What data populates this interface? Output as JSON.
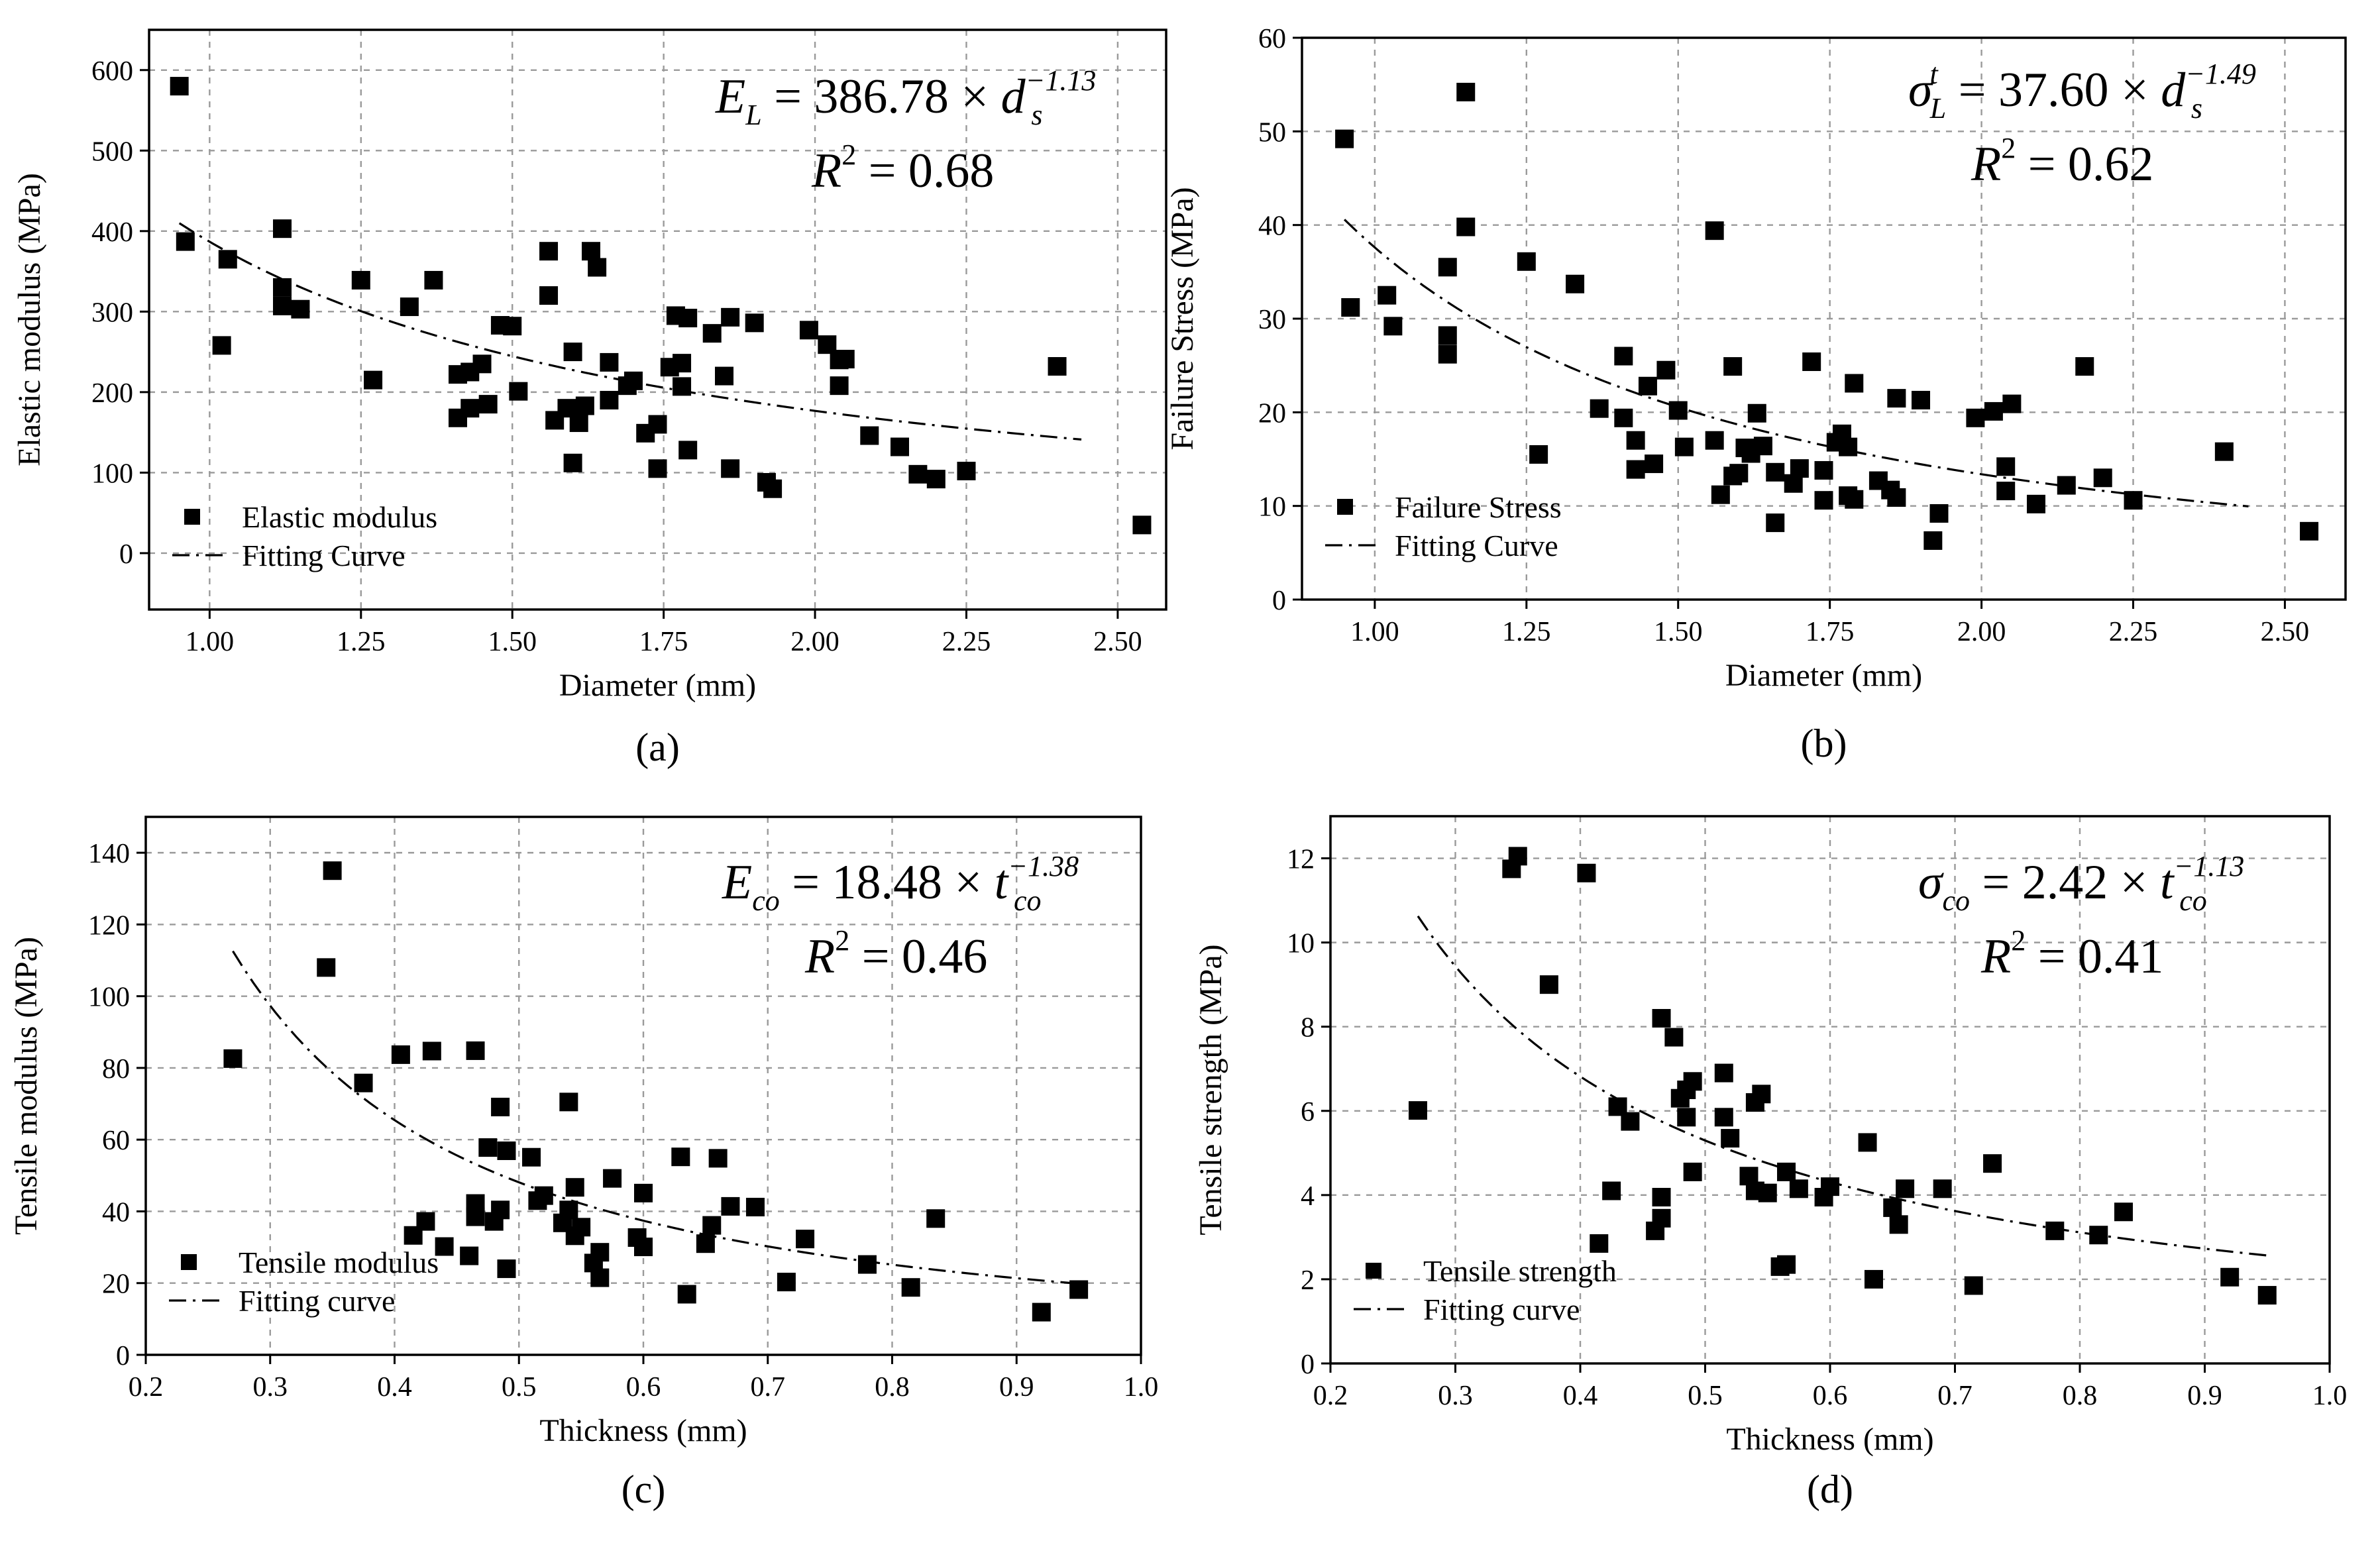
{
  "chart_data": [
    {
      "type": "scatter",
      "panel_label": "(a)",
      "xlabel": "Diameter (mm)",
      "ylabel": "Elastic modulus (MPa)",
      "xlim": [
        0.9,
        2.58
      ],
      "ylim": [
        -70,
        650
      ],
      "xticks": [
        1.0,
        1.25,
        1.5,
        1.75,
        2.0,
        2.25,
        2.5
      ],
      "xtick_labels": [
        "1.00",
        "1.25",
        "1.50",
        "1.75",
        "2.00",
        "2.25",
        "2.50"
      ],
      "yticks": [
        0,
        100,
        200,
        300,
        400,
        500,
        600
      ],
      "ytick_labels": [
        "0",
        "100",
        "200",
        "300",
        "400",
        "500",
        "600"
      ],
      "equation": {
        "lhs": "E",
        "lhs_sub": "L",
        "coef": "386.78",
        "var": "d",
        "var_sub": "s",
        "exp": "−1.13",
        "r2_label": "R",
        "r2_value": "0.68"
      },
      "legend": {
        "points": "Elastic modulus",
        "fit": "Fitting Curve",
        "position": "bottom-left"
      },
      "fit": {
        "a": 386.78,
        "b": -1.13,
        "x_range": [
          0.95,
          2.44
        ]
      },
      "points": [
        [
          0.95,
          580
        ],
        [
          0.96,
          387
        ],
        [
          1.03,
          365
        ],
        [
          1.02,
          258
        ],
        [
          1.12,
          403
        ],
        [
          1.12,
          330
        ],
        [
          1.12,
          307
        ],
        [
          1.15,
          303
        ],
        [
          1.25,
          339
        ],
        [
          1.27,
          215
        ],
        [
          1.33,
          306
        ],
        [
          1.37,
          339
        ],
        [
          1.41,
          222
        ],
        [
          1.41,
          168
        ],
        [
          1.43,
          180
        ],
        [
          1.43,
          225
        ],
        [
          1.45,
          235
        ],
        [
          1.46,
          185
        ],
        [
          1.48,
          283
        ],
        [
          1.5,
          282
        ],
        [
          1.51,
          201
        ],
        [
          1.56,
          375
        ],
        [
          1.56,
          320
        ],
        [
          1.57,
          165
        ],
        [
          1.59,
          180
        ],
        [
          1.6,
          250
        ],
        [
          1.6,
          112
        ],
        [
          1.61,
          162
        ],
        [
          1.62,
          183
        ],
        [
          1.63,
          375
        ],
        [
          1.64,
          355
        ],
        [
          1.66,
          190
        ],
        [
          1.66,
          237
        ],
        [
          1.69,
          208
        ],
        [
          1.7,
          214
        ],
        [
          1.72,
          149
        ],
        [
          1.74,
          160
        ],
        [
          1.74,
          105
        ],
        [
          1.76,
          231
        ],
        [
          1.77,
          295
        ],
        [
          1.78,
          207
        ],
        [
          1.78,
          236
        ],
        [
          1.79,
          292
        ],
        [
          1.79,
          128
        ],
        [
          1.83,
          273
        ],
        [
          1.85,
          220
        ],
        [
          1.86,
          293
        ],
        [
          1.86,
          105
        ],
        [
          1.9,
          286
        ],
        [
          1.92,
          88
        ],
        [
          1.93,
          80
        ],
        [
          1.99,
          277
        ],
        [
          2.02,
          259
        ],
        [
          2.04,
          240
        ],
        [
          2.04,
          208
        ],
        [
          2.05,
          241
        ],
        [
          2.09,
          146
        ],
        [
          2.14,
          132
        ],
        [
          2.17,
          98
        ],
        [
          2.2,
          92
        ],
        [
          2.25,
          102
        ],
        [
          2.4,
          232
        ],
        [
          2.54,
          35
        ]
      ]
    },
    {
      "type": "scatter",
      "panel_label": "(b)",
      "xlabel": "Diameter (mm)",
      "ylabel": "Failure Stress (MPa)",
      "xlim": [
        0.88,
        2.6
      ],
      "ylim": [
        0,
        60
      ],
      "xticks": [
        1.0,
        1.25,
        1.5,
        1.75,
        2.0,
        2.25,
        2.5
      ],
      "xtick_labels": [
        "1.00",
        "1.25",
        "1.50",
        "1.75",
        "2.00",
        "2.25",
        "2.50"
      ],
      "yticks": [
        0,
        10,
        20,
        30,
        40,
        50,
        60
      ],
      "ytick_labels": [
        "0",
        "10",
        "20",
        "30",
        "40",
        "50",
        "60"
      ],
      "equation": {
        "lhs": "σ",
        "lhs_sub": "L",
        "lhs_sup": "t",
        "coef": "37.60",
        "var": "d",
        "var_sub": "s",
        "exp": "−1.49",
        "r2_label": "R",
        "r2_value": "0.62"
      },
      "legend": {
        "points": "Failure Stress",
        "fit": "Fitting Curve",
        "position": "bottom-left"
      },
      "fit": {
        "a": 37.6,
        "b": -1.49,
        "x_range": [
          0.95,
          2.44
        ]
      },
      "points": [
        [
          0.95,
          49.2
        ],
        [
          0.96,
          31.2
        ],
        [
          1.02,
          32.5
        ],
        [
          1.03,
          29.2
        ],
        [
          1.12,
          35.5
        ],
        [
          1.12,
          28.2
        ],
        [
          1.12,
          26.2
        ],
        [
          1.15,
          54.2
        ],
        [
          1.15,
          39.8
        ],
        [
          1.25,
          36.1
        ],
        [
          1.27,
          15.5
        ],
        [
          1.33,
          33.7
        ],
        [
          1.37,
          20.4
        ],
        [
          1.41,
          26
        ],
        [
          1.41,
          19.4
        ],
        [
          1.43,
          13.9
        ],
        [
          1.43,
          17
        ],
        [
          1.45,
          22.8
        ],
        [
          1.46,
          14.5
        ],
        [
          1.48,
          24.5
        ],
        [
          1.5,
          20.2
        ],
        [
          1.51,
          16.3
        ],
        [
          1.56,
          39.4
        ],
        [
          1.56,
          17
        ],
        [
          1.57,
          11.2
        ],
        [
          1.59,
          24.9
        ],
        [
          1.59,
          13.2
        ],
        [
          1.6,
          13.5
        ],
        [
          1.61,
          16.2
        ],
        [
          1.62,
          15.6
        ],
        [
          1.63,
          19.9
        ],
        [
          1.64,
          16.4
        ],
        [
          1.66,
          8.2
        ],
        [
          1.66,
          13.6
        ],
        [
          1.69,
          12.4
        ],
        [
          1.7,
          14
        ],
        [
          1.72,
          25.4
        ],
        [
          1.74,
          13.8
        ],
        [
          1.74,
          10.6
        ],
        [
          1.76,
          16.8
        ],
        [
          1.77,
          17.7
        ],
        [
          1.78,
          16.3
        ],
        [
          1.78,
          11.1
        ],
        [
          1.79,
          23.1
        ],
        [
          1.79,
          10.7
        ],
        [
          1.83,
          12.7
        ],
        [
          1.85,
          11.7
        ],
        [
          1.86,
          21.5
        ],
        [
          1.86,
          10.9
        ],
        [
          1.9,
          21.3
        ],
        [
          1.92,
          6.3
        ],
        [
          1.93,
          9.2
        ],
        [
          1.99,
          19.4
        ],
        [
          2.02,
          20.1
        ],
        [
          2.04,
          14.2
        ],
        [
          2.04,
          11.6
        ],
        [
          2.05,
          20.9
        ],
        [
          2.09,
          10.2
        ],
        [
          2.14,
          12.2
        ],
        [
          2.17,
          24.9
        ],
        [
          2.2,
          13
        ],
        [
          2.25,
          10.6
        ],
        [
          2.4,
          15.8
        ],
        [
          2.54,
          7.3
        ]
      ]
    },
    {
      "type": "scatter",
      "panel_label": "(c)",
      "xlabel": "Thickness (mm)",
      "ylabel": "Tensile modulus (MPa)",
      "xlim": [
        0.2,
        1.0
      ],
      "ylim": [
        0,
        150
      ],
      "xticks": [
        0.2,
        0.3,
        0.4,
        0.5,
        0.6,
        0.7,
        0.8,
        0.9,
        1.0
      ],
      "xtick_labels": [
        "0.2",
        "0.3",
        "0.4",
        "0.5",
        "0.6",
        "0.7",
        "0.8",
        "0.9",
        "1.0"
      ],
      "yticks": [
        0,
        20,
        40,
        60,
        80,
        100,
        120,
        140
      ],
      "ytick_labels": [
        "0",
        "20",
        "40",
        "60",
        "80",
        "100",
        "120",
        "140"
      ],
      "equation": {
        "lhs": "E",
        "lhs_sub": "co",
        "coef": "18.48",
        "var": "t",
        "var_sub": "co",
        "exp": "−1.38",
        "r2_label": "R",
        "r2_value": "0.46"
      },
      "legend": {
        "points": "Tensile modulus",
        "fit": "Fitting curve",
        "position": "bottom-left"
      },
      "fit": {
        "a": 18.48,
        "b": -1.38,
        "x_range": [
          0.27,
          0.95
        ]
      },
      "points": [
        [
          0.27,
          82.6
        ],
        [
          0.345,
          108
        ],
        [
          0.35,
          135
        ],
        [
          0.375,
          75.8
        ],
        [
          0.405,
          83.7
        ],
        [
          0.415,
          33.3
        ],
        [
          0.425,
          37.2
        ],
        [
          0.43,
          84.7
        ],
        [
          0.44,
          30.2
        ],
        [
          0.46,
          27.6
        ],
        [
          0.465,
          84.8
        ],
        [
          0.465,
          38.5
        ],
        [
          0.465,
          42.2
        ],
        [
          0.475,
          57.8
        ],
        [
          0.48,
          37.2
        ],
        [
          0.485,
          69.1
        ],
        [
          0.485,
          40.4
        ],
        [
          0.49,
          56.9
        ],
        [
          0.49,
          24
        ],
        [
          0.51,
          55.1
        ],
        [
          0.515,
          43
        ],
        [
          0.52,
          44.4
        ],
        [
          0.535,
          36.8
        ],
        [
          0.54,
          70.5
        ],
        [
          0.54,
          40.4
        ],
        [
          0.545,
          46.7
        ],
        [
          0.545,
          33.2
        ],
        [
          0.55,
          35.6
        ],
        [
          0.56,
          25.6
        ],
        [
          0.565,
          21.5
        ],
        [
          0.565,
          28.6
        ],
        [
          0.575,
          49.2
        ],
        [
          0.595,
          32.7
        ],
        [
          0.6,
          45.1
        ],
        [
          0.6,
          30.1
        ],
        [
          0.63,
          55.2
        ],
        [
          0.635,
          16.9
        ],
        [
          0.65,
          31
        ],
        [
          0.655,
          36.1
        ],
        [
          0.66,
          54.8
        ],
        [
          0.67,
          41.4
        ],
        [
          0.69,
          41.2
        ],
        [
          0.715,
          20.3
        ],
        [
          0.73,
          32.3
        ],
        [
          0.78,
          25.2
        ],
        [
          0.815,
          18.8
        ],
        [
          0.835,
          38
        ],
        [
          0.92,
          11.9
        ],
        [
          0.95,
          18.2
        ]
      ]
    },
    {
      "type": "scatter",
      "panel_label": "(d)",
      "xlabel": "Thickness (mm)",
      "ylabel": "Tensile strength (MPa)",
      "xlim": [
        0.2,
        1.0
      ],
      "ylim": [
        0,
        13
      ],
      "xticks": [
        0.2,
        0.3,
        0.4,
        0.5,
        0.6,
        0.7,
        0.8,
        0.9,
        1.0
      ],
      "xtick_labels": [
        "0.2",
        "0.3",
        "0.4",
        "0.5",
        "0.6",
        "0.7",
        "0.8",
        "0.9",
        "1.0"
      ],
      "yticks": [
        0,
        2,
        4,
        6,
        8,
        10,
        12
      ],
      "ytick_labels": [
        "0",
        "2",
        "4",
        "6",
        "8",
        "10",
        "12"
      ],
      "equation": {
        "lhs": "σ",
        "lhs_sub": "co",
        "coef": "2.42",
        "var": "t",
        "var_sub": "co",
        "exp": "−1.13",
        "r2_label": "R",
        "r2_value": "0.41"
      },
      "legend": {
        "points": "Tensile strength",
        "fit": "Fitting curve",
        "position": "bottom-left"
      },
      "fit": {
        "a": 2.42,
        "b": -1.13,
        "x_range": [
          0.27,
          0.95
        ]
      },
      "points": [
        [
          0.27,
          6.01
        ],
        [
          0.345,
          11.75
        ],
        [
          0.35,
          12.05
        ],
        [
          0.375,
          9
        ],
        [
          0.405,
          11.65
        ],
        [
          0.415,
          2.85
        ],
        [
          0.425,
          4.1
        ],
        [
          0.43,
          6.1
        ],
        [
          0.44,
          5.75
        ],
        [
          0.46,
          3.15
        ],
        [
          0.465,
          8.2
        ],
        [
          0.465,
          3.45
        ],
        [
          0.465,
          3.95
        ],
        [
          0.475,
          7.75
        ],
        [
          0.48,
          6.3
        ],
        [
          0.485,
          6.5
        ],
        [
          0.485,
          5.85
        ],
        [
          0.49,
          6.7
        ],
        [
          0.49,
          4.55
        ],
        [
          0.515,
          6.9
        ],
        [
          0.515,
          5.85
        ],
        [
          0.52,
          5.35
        ],
        [
          0.535,
          4.45
        ],
        [
          0.54,
          6.2
        ],
        [
          0.54,
          4.1
        ],
        [
          0.545,
          6.4
        ],
        [
          0.55,
          4.05
        ],
        [
          0.56,
          2.3
        ],
        [
          0.565,
          2.35
        ],
        [
          0.565,
          4.55
        ],
        [
          0.575,
          4.15
        ],
        [
          0.595,
          3.95
        ],
        [
          0.6,
          4.2
        ],
        [
          0.63,
          5.25
        ],
        [
          0.635,
          2.0
        ],
        [
          0.65,
          3.7
        ],
        [
          0.655,
          3.3
        ],
        [
          0.66,
          4.15
        ],
        [
          0.69,
          4.15
        ],
        [
          0.715,
          1.85
        ],
        [
          0.73,
          4.75
        ],
        [
          0.78,
          3.15
        ],
        [
          0.815,
          3.05
        ],
        [
          0.835,
          3.6
        ],
        [
          0.92,
          2.05
        ],
        [
          0.95,
          1.62
        ]
      ]
    }
  ]
}
